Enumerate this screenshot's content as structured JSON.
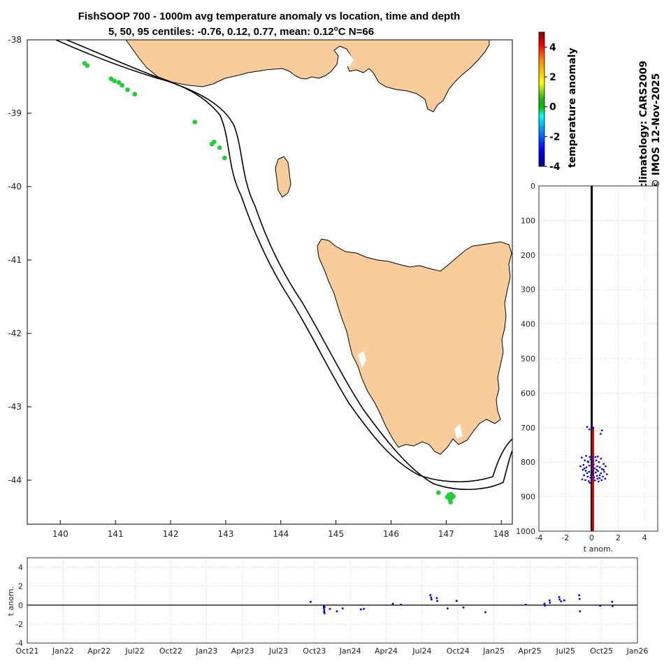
{
  "title": {
    "line1": "FishSOOP 700 - 1000m avg temperature anomaly vs location, time and depth",
    "line2_prefix": "5, 50, 95 centiles: -0.76, 0.12, 0.77, mean: 0.12",
    "line2_deg": "o",
    "line2_suffix": "C N=66"
  },
  "side_text": {
    "line1": "climatology: CARS2009",
    "line2": "© IMOS 12-Nov-2025"
  },
  "colors": {
    "land": "#f9cc9c",
    "point_green": "#22cc3a",
    "profile_blue": "#0000dd",
    "profile_red": "#dd0000",
    "grid": "#b8b8c8"
  },
  "chart_data": [
    {
      "type": "scatter",
      "name": "map",
      "xlabel": "",
      "ylabel": "",
      "xlim": [
        139.4,
        148.2
      ],
      "ylim": [
        -44.6,
        -38.0
      ],
      "xticks": [
        140,
        141,
        142,
        143,
        144,
        145,
        146,
        147,
        148
      ],
      "yticks": [
        -38,
        -39,
        -40,
        -41,
        -42,
        -43,
        -44
      ],
      "color_by": "temperature anomaly",
      "points": [
        {
          "lon": 140.44,
          "lat": -38.32
        },
        {
          "lon": 140.49,
          "lat": -38.35
        },
        {
          "lon": 140.92,
          "lat": -38.53
        },
        {
          "lon": 140.98,
          "lat": -38.56
        },
        {
          "lon": 141.06,
          "lat": -38.58
        },
        {
          "lon": 141.12,
          "lat": -38.62
        },
        {
          "lon": 141.22,
          "lat": -38.68
        },
        {
          "lon": 141.35,
          "lat": -38.74
        },
        {
          "lon": 142.44,
          "lat": -39.12
        },
        {
          "lon": 142.75,
          "lat": -39.42
        },
        {
          "lon": 142.79,
          "lat": -39.39
        },
        {
          "lon": 142.89,
          "lat": -39.47
        },
        {
          "lon": 142.98,
          "lat": -39.61
        },
        {
          "lon": 146.86,
          "lat": -44.17
        },
        {
          "lon": 147.02,
          "lat": -44.23
        },
        {
          "lon": 147.05,
          "lat": -44.2
        },
        {
          "lon": 147.09,
          "lat": -44.19
        },
        {
          "lon": 147.07,
          "lat": -44.27
        },
        {
          "lon": 147.1,
          "lat": -44.24
        },
        {
          "lon": 147.13,
          "lat": -44.22
        },
        {
          "lon": 147.08,
          "lat": -44.3
        }
      ]
    },
    {
      "type": "heatmap",
      "name": "colorbar",
      "ylabel": "temperature anomaly",
      "ylim": [
        -4,
        5
      ],
      "yticks": [
        4,
        2,
        0,
        -2,
        -4
      ]
    },
    {
      "type": "scatter",
      "name": "depth profile",
      "xlabel": "t anom.",
      "ylabel": "",
      "xlim": [
        -4,
        5
      ],
      "ylim": [
        1000,
        0
      ],
      "xticks": [
        -4,
        -2,
        0,
        2,
        4
      ],
      "yticks": [
        0,
        100,
        200,
        300,
        400,
        500,
        600,
        700,
        800,
        900,
        1000
      ],
      "points": [
        {
          "x": -0.35,
          "y": 698
        },
        {
          "x": 0.12,
          "y": 700
        },
        {
          "x": 0.78,
          "y": 708
        },
        {
          "x": 0.68,
          "y": 718
        },
        {
          "x": 0.05,
          "y": 702
        },
        {
          "x": -0.18,
          "y": 705
        },
        {
          "x": -0.75,
          "y": 787
        },
        {
          "x": -0.42,
          "y": 782
        },
        {
          "x": -0.15,
          "y": 785
        },
        {
          "x": 0.05,
          "y": 788
        },
        {
          "x": 0.28,
          "y": 785
        },
        {
          "x": 0.46,
          "y": 784
        },
        {
          "x": 0.71,
          "y": 790
        },
        {
          "x": -0.52,
          "y": 795
        },
        {
          "x": -0.3,
          "y": 798
        },
        {
          "x": -0.08,
          "y": 792
        },
        {
          "x": 0.12,
          "y": 797
        },
        {
          "x": 0.34,
          "y": 795
        },
        {
          "x": 0.55,
          "y": 800
        },
        {
          "x": 0.91,
          "y": 805
        },
        {
          "x": -0.85,
          "y": 812
        },
        {
          "x": -0.62,
          "y": 808
        },
        {
          "x": -0.4,
          "y": 815
        },
        {
          "x": -0.18,
          "y": 810
        },
        {
          "x": 0.02,
          "y": 812
        },
        {
          "x": 0.22,
          "y": 818
        },
        {
          "x": 0.42,
          "y": 812
        },
        {
          "x": 0.62,
          "y": 815
        },
        {
          "x": 0.78,
          "y": 820
        },
        {
          "x": 1.05,
          "y": 812
        },
        {
          "x": -0.66,
          "y": 822
        },
        {
          "x": -0.45,
          "y": 825
        },
        {
          "x": -0.2,
          "y": 828
        },
        {
          "x": 0.08,
          "y": 825
        },
        {
          "x": 0.3,
          "y": 830
        },
        {
          "x": 0.48,
          "y": 826
        },
        {
          "x": 0.7,
          "y": 832
        },
        {
          "x": 0.95,
          "y": 828
        },
        {
          "x": 1.15,
          "y": 835
        },
        {
          "x": -0.58,
          "y": 838
        },
        {
          "x": -0.3,
          "y": 842
        },
        {
          "x": -0.05,
          "y": 838
        },
        {
          "x": 0.18,
          "y": 844
        },
        {
          "x": 0.4,
          "y": 840
        },
        {
          "x": 0.6,
          "y": 846
        },
        {
          "x": 0.85,
          "y": 842
        },
        {
          "x": 1.02,
          "y": 848
        },
        {
          "x": -0.72,
          "y": 850
        },
        {
          "x": -0.48,
          "y": 852
        },
        {
          "x": -0.22,
          "y": 855
        },
        {
          "x": 0.0,
          "y": 850
        },
        {
          "x": 0.25,
          "y": 853
        },
        {
          "x": 0.52,
          "y": 856
        },
        {
          "x": 0.75,
          "y": 852
        },
        {
          "x": -0.1,
          "y": 845
        },
        {
          "x": 0.12,
          "y": 835
        },
        {
          "x": -0.35,
          "y": 832
        },
        {
          "x": 0.38,
          "y": 822
        },
        {
          "x": -0.55,
          "y": 818
        },
        {
          "x": 0.15,
          "y": 806
        },
        {
          "x": -0.25,
          "y": 800
        },
        {
          "x": 0.6,
          "y": 838
        },
        {
          "x": 0.9,
          "y": 822
        },
        {
          "x": -0.15,
          "y": 860
        },
        {
          "x": 0.45,
          "y": 848
        },
        {
          "x": 0.05,
          "y": 830
        }
      ]
    },
    {
      "type": "scatter",
      "name": "time series",
      "xlabel": "",
      "ylabel": "t anom.",
      "xlim": [
        "2021-10",
        "2026-01"
      ],
      "ylim": [
        -4,
        5
      ],
      "yticks": [
        4,
        2,
        0,
        -2,
        -4
      ],
      "xticks": [
        "Oct21",
        "Jan22",
        "Apr22",
        "Jul22",
        "Oct22",
        "Jan23",
        "Apr23",
        "Jul23",
        "Oct23",
        "Jan24",
        "Apr24",
        "Jul24",
        "Oct24",
        "Jan25",
        "Apr25",
        "Jul25",
        "Oct25",
        "Jan26"
      ],
      "points": [
        {
          "date": "2023-09-22",
          "y": 0.35
        },
        {
          "date": "2023-10-25",
          "y": -0.1
        },
        {
          "date": "2023-10-25",
          "y": -0.3
        },
        {
          "date": "2023-10-26",
          "y": -0.5
        },
        {
          "date": "2023-10-26",
          "y": -0.7
        },
        {
          "date": "2023-10-27",
          "y": -0.85
        },
        {
          "date": "2023-10-27",
          "y": -0.2
        },
        {
          "date": "2023-11-10",
          "y": -0.4
        },
        {
          "date": "2023-11-28",
          "y": -0.65
        },
        {
          "date": "2023-12-12",
          "y": -0.35
        },
        {
          "date": "2024-01-28",
          "y": -0.45
        },
        {
          "date": "2024-02-05",
          "y": -0.4
        },
        {
          "date": "2024-04-18",
          "y": 0.15
        },
        {
          "date": "2024-05-08",
          "y": 0.05
        },
        {
          "date": "2024-07-22",
          "y": 1.05
        },
        {
          "date": "2024-07-24",
          "y": 0.8
        },
        {
          "date": "2024-07-25",
          "y": 0.6
        },
        {
          "date": "2024-08-08",
          "y": 0.75
        },
        {
          "date": "2024-08-09",
          "y": 0.45
        },
        {
          "date": "2024-09-05",
          "y": -0.35
        },
        {
          "date": "2024-09-28",
          "y": 0.45
        },
        {
          "date": "2024-10-15",
          "y": -0.25
        },
        {
          "date": "2024-12-10",
          "y": -0.75
        },
        {
          "date": "2025-03-21",
          "y": 0.05
        },
        {
          "date": "2025-05-08",
          "y": 0.15
        },
        {
          "date": "2025-05-09",
          "y": -0.05
        },
        {
          "date": "2025-05-21",
          "y": 0.5
        },
        {
          "date": "2025-05-22",
          "y": 0.25
        },
        {
          "date": "2025-06-15",
          "y": 0.85
        },
        {
          "date": "2025-06-16",
          "y": 0.6
        },
        {
          "date": "2025-06-20",
          "y": 0.4
        },
        {
          "date": "2025-06-28",
          "y": 0.5
        },
        {
          "date": "2025-08-05",
          "y": 1.05
        },
        {
          "date": "2025-08-06",
          "y": 0.65
        },
        {
          "date": "2025-08-07",
          "y": -0.65
        },
        {
          "date": "2025-09-28",
          "y": -0.05
        },
        {
          "date": "2025-10-28",
          "y": 0.35
        },
        {
          "date": "2025-10-29",
          "y": -0.1
        }
      ]
    }
  ]
}
